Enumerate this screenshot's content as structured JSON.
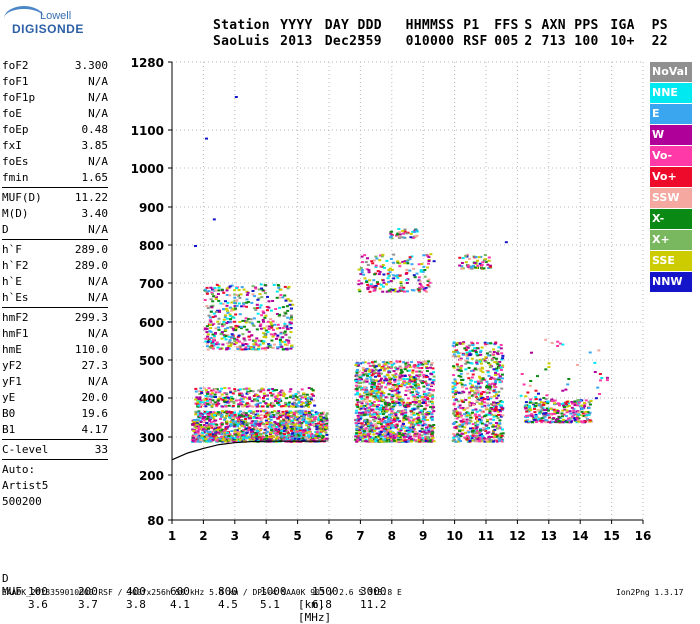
{
  "logo": {
    "top": "Lowell",
    "bottom": "DIGISONDE"
  },
  "header": {
    "labels": [
      "Station",
      "YYYY",
      "DAY",
      "DDD",
      "HHMMSS",
      "P1",
      "FFS",
      "S",
      "AXN",
      "PPS",
      "IGA",
      "PS"
    ],
    "values": [
      "SaoLuis",
      "2013",
      "Dec25",
      "359",
      "010000",
      "RSF",
      "005",
      "2",
      "713",
      "100",
      "10+",
      "22"
    ]
  },
  "params": {
    "group1": [
      {
        "label": "foF2",
        "value": "3.300"
      },
      {
        "label": "foF1",
        "value": "N/A"
      },
      {
        "label": "foF1p",
        "value": "N/A"
      },
      {
        "label": "foE",
        "value": "N/A"
      },
      {
        "label": "foEp",
        "value": "0.48"
      },
      {
        "label": "fxI",
        "value": "3.85"
      },
      {
        "label": "foEs",
        "value": "N/A"
      },
      {
        "label": "fmin",
        "value": "1.65"
      }
    ],
    "group2": [
      {
        "label": "MUF(D)",
        "value": "11.22"
      },
      {
        "label": "M(D)",
        "value": "3.40"
      },
      {
        "label": "D",
        "value": "N/A"
      }
    ],
    "group3": [
      {
        "label": "h`F",
        "value": "289.0"
      },
      {
        "label": "h`F2",
        "value": "289.0"
      },
      {
        "label": "h`E",
        "value": "N/A"
      },
      {
        "label": "h`Es",
        "value": "N/A"
      }
    ],
    "group4": [
      {
        "label": "hmF2",
        "value": "299.3"
      },
      {
        "label": "hmF1",
        "value": "N/A"
      },
      {
        "label": "hmE",
        "value": "110.0"
      },
      {
        "label": "yF2",
        "value": "27.3"
      },
      {
        "label": "yF1",
        "value": "N/A"
      },
      {
        "label": "yE",
        "value": "20.0"
      },
      {
        "label": "B0",
        "value": "19.6"
      },
      {
        "label": "B1",
        "value": "4.17"
      }
    ],
    "clevel": {
      "label": "C-level",
      "value": "33"
    },
    "auto": [
      "Auto:",
      "Artist5",
      "500200"
    ]
  },
  "legend": [
    {
      "label": "NoVal",
      "color": "#909090"
    },
    {
      "label": "NNE",
      "color": "#00e8f0"
    },
    {
      "label": "E",
      "color": "#3aa6f0"
    },
    {
      "label": "W",
      "color": "#b0009a"
    },
    {
      "label": "Vo-",
      "color": "#ff3aa8"
    },
    {
      "label": "Vo+",
      "color": "#ee0a2a"
    },
    {
      "label": "SSW",
      "color": "#f4a8a0"
    },
    {
      "label": "X-",
      "color": "#0a8a14"
    },
    {
      "label": "X+",
      "color": "#7ab860"
    },
    {
      "label": "SSE",
      "color": "#cccc00"
    },
    {
      "label": "NNW",
      "color": "#1414c8"
    }
  ],
  "footer": {
    "d_label": "D",
    "d_values": [
      "100",
      "200",
      "400",
      "600",
      "800",
      "1000",
      "1500",
      "3000"
    ],
    "d_unit": "[km]",
    "muf_label": "MUF",
    "muf_values": [
      "3.6",
      "3.7",
      "3.8",
      "4.1",
      "4.5",
      "5.1",
      "6.8",
      "11.2"
    ],
    "muf_unit": "[MHz]",
    "file_line": "SAA0K_2013359010000.RSF / 300fx256h 50 kHz 5.0 km / DPS-4 SAA0K 903 / 2.6 S 315.8 E",
    "version": "Ion2Png 1.3.17"
  },
  "chart_data": {
    "type": "scatter",
    "x_ticks": [
      1,
      2,
      3,
      4,
      5,
      6,
      7,
      8,
      9,
      10,
      11,
      12,
      13,
      14,
      15,
      16
    ],
    "y_ticks": [
      80,
      200,
      300,
      400,
      500,
      600,
      700,
      800,
      900,
      1000,
      1100,
      1280
    ],
    "xlim": [
      1,
      16
    ],
    "ylim": [
      80,
      1280
    ],
    "grid": true,
    "trace_curve": {
      "x": [
        1.0,
        1.5,
        2.0,
        2.5,
        3.0,
        3.5,
        4.0,
        4.5,
        5.0,
        5.5,
        5.9
      ],
      "y": [
        240,
        258,
        270,
        280,
        285,
        288,
        289,
        289,
        289,
        289,
        289
      ]
    },
    "echo_regions": [
      {
        "x": [
          1.6,
          5.9
        ],
        "y": [
          290,
          370
        ],
        "density": 1400
      },
      {
        "x": [
          1.7,
          5.5
        ],
        "y": [
          380,
          430
        ],
        "density": 350
      },
      {
        "x": [
          2.0,
          4.8
        ],
        "y": [
          530,
          700
        ],
        "density": 500
      },
      {
        "x": [
          6.8,
          9.3
        ],
        "y": [
          290,
          500
        ],
        "density": 1300
      },
      {
        "x": [
          6.9,
          9.2
        ],
        "y": [
          680,
          780
        ],
        "density": 180
      },
      {
        "x": [
          7.9,
          8.8
        ],
        "y": [
          820,
          845
        ],
        "density": 40
      },
      {
        "x": [
          9.9,
          11.5
        ],
        "y": [
          290,
          550
        ],
        "density": 700
      },
      {
        "x": [
          10.1,
          11.1
        ],
        "y": [
          740,
          780
        ],
        "density": 60
      },
      {
        "x": [
          12.2,
          14.3
        ],
        "y": [
          340,
          400
        ],
        "density": 300
      },
      {
        "x": [
          11.9,
          15.1
        ],
        "y": [
          400,
          560
        ],
        "density": 40
      }
    ]
  }
}
